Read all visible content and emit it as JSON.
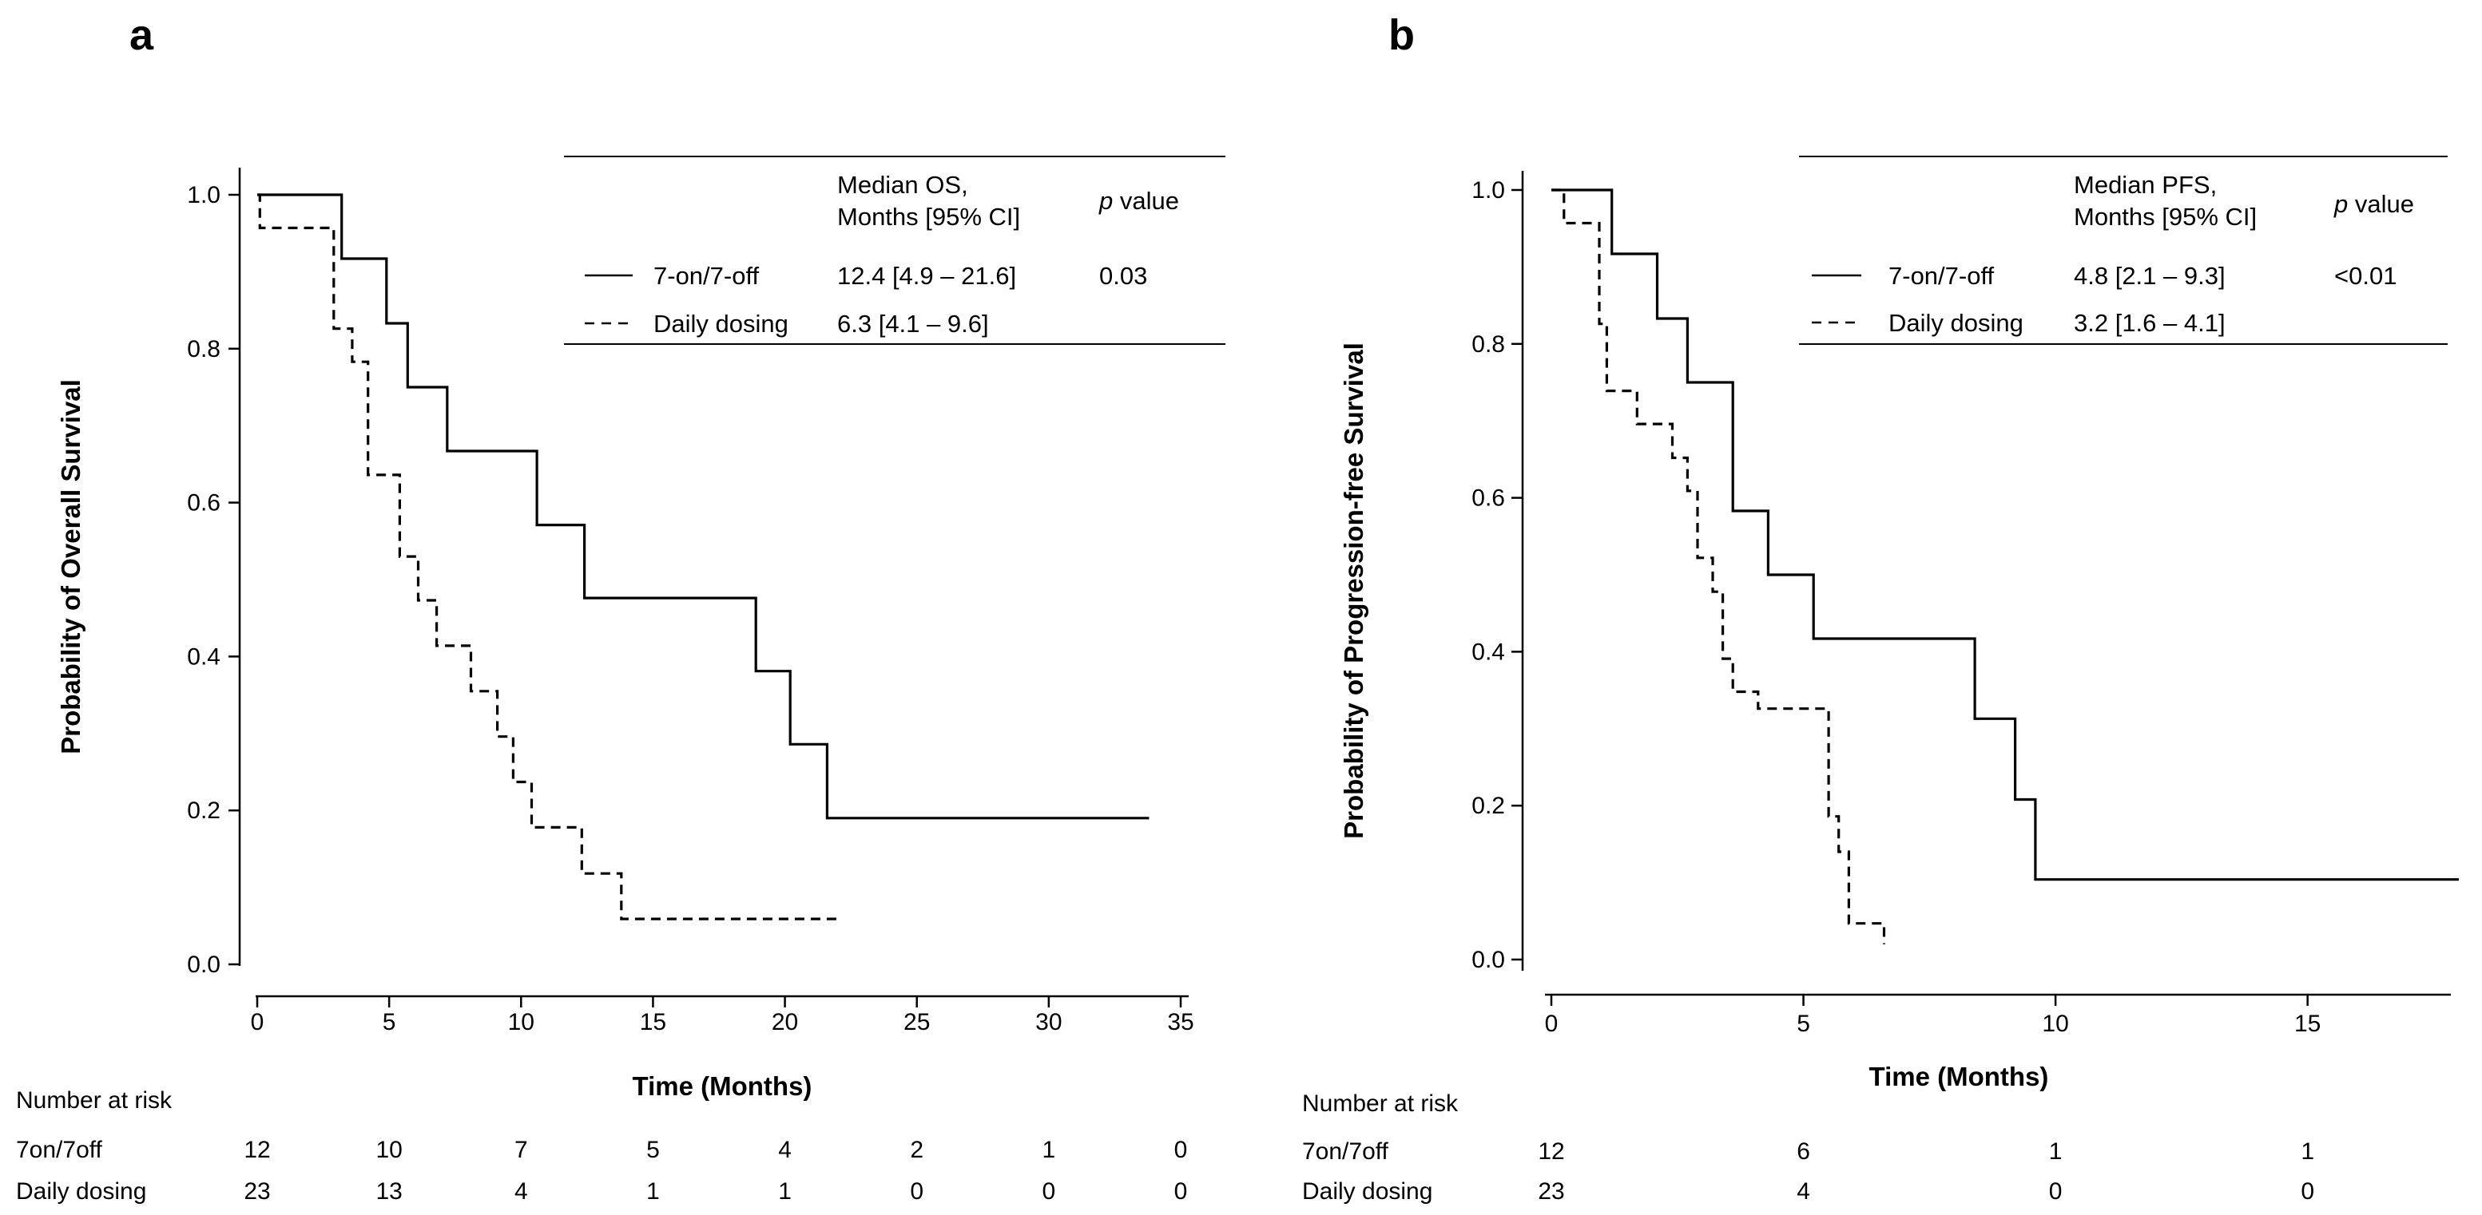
{
  "chart_data": [
    {
      "panel": "a",
      "type": "line",
      "subtype": "kaplan-meier",
      "xlabel": "Time (Months)",
      "ylabel": "Probability of Overall Survival",
      "xlim": [
        0,
        35
      ],
      "ylim": [
        0,
        1
      ],
      "xticks": [
        "0",
        "5",
        "10",
        "15",
        "20",
        "25",
        "30",
        "35"
      ],
      "yticks": [
        "0.0",
        "0.2",
        "0.4",
        "0.6",
        "0.8",
        "1.0"
      ],
      "series": [
        {
          "name": "7-on/7-off",
          "style": "solid",
          "x": [
            0,
            3.2,
            4.9,
            5.7,
            7.2,
            10.6,
            12.4,
            18.9,
            20.2,
            21.6,
            33.8
          ],
          "y": [
            1.0,
            0.917,
            0.833,
            0.75,
            0.667,
            0.571,
            0.476,
            0.381,
            0.286,
            0.19,
            0.19
          ]
        },
        {
          "name": "Daily dosing",
          "style": "dashed",
          "x": [
            0,
            0.1,
            2.9,
            3.6,
            4.2,
            5.4,
            6.1,
            6.8,
            8.1,
            9.1,
            9.7,
            10.4,
            12.3,
            13.8,
            22.0
          ],
          "y": [
            1.0,
            0.957,
            0.826,
            0.783,
            0.636,
            0.53,
            0.473,
            0.414,
            0.355,
            0.296,
            0.237,
            0.178,
            0.118,
            0.059,
            0.059
          ]
        }
      ],
      "legend": {
        "header_col1": [
          "Median OS,",
          "Months [95% CI]"
        ],
        "header_p_italic": "p",
        "header_p_rest": " value",
        "rows": [
          {
            "label": "7-on/7-off",
            "median": "12.4 [4.9 – 21.6]",
            "p": "0.03"
          },
          {
            "label": "Daily dosing",
            "median": "6.3 [4.1 – 9.6]",
            "p": ""
          }
        ]
      },
      "risk_table": {
        "title": "Number at risk",
        "rows": [
          {
            "label": "7on/7off",
            "values": [
              "12",
              "10",
              "7",
              "5",
              "4",
              "2",
              "1",
              "0"
            ]
          },
          {
            "label": "Daily dosing",
            "values": [
              "23",
              "13",
              "4",
              "1",
              "1",
              "0",
              "0",
              "0"
            ]
          }
        ]
      }
    },
    {
      "panel": "b",
      "type": "line",
      "subtype": "kaplan-meier",
      "xlabel": "Time (Months)",
      "ylabel": "Probability of Progression-free Survival",
      "xlim": [
        0,
        18
      ],
      "ylim": [
        0,
        1
      ],
      "xticks": [
        "0",
        "5",
        "10",
        "15"
      ],
      "yticks": [
        "0.0",
        "0.2",
        "0.4",
        "0.6",
        "0.8",
        "1.0"
      ],
      "series": [
        {
          "name": "7-on/7-off",
          "style": "solid",
          "x": [
            0,
            1.2,
            2.1,
            2.7,
            3.6,
            4.3,
            5.2,
            8.4,
            9.2,
            9.6,
            18.0
          ],
          "y": [
            1.0,
            0.917,
            0.833,
            0.75,
            0.583,
            0.5,
            0.417,
            0.313,
            0.208,
            0.104,
            0.104
          ]
        },
        {
          "name": "Daily dosing",
          "style": "dashed",
          "x": [
            0,
            0.25,
            0.95,
            1.1,
            1.3,
            1.7,
            2.4,
            2.7,
            2.9,
            3.2,
            3.4,
            3.6,
            4.1,
            5.5,
            5.7,
            5.9,
            6.6
          ],
          "y": [
            1.0,
            0.957,
            0.826,
            0.739,
            0.739,
            0.696,
            0.652,
            0.609,
            0.522,
            0.478,
            0.391,
            0.348,
            0.326,
            0.186,
            0.14,
            0.047,
            0.02
          ]
        }
      ],
      "legend": {
        "header_col1": [
          "Median PFS,",
          "Months [95% CI]"
        ],
        "header_p_italic": "p",
        "header_p_rest": " value",
        "rows": [
          {
            "label": "7-on/7-off",
            "median": "4.8 [2.1 – 9.3]",
            "p": "<0.01"
          },
          {
            "label": "Daily dosing",
            "median": "3.2 [1.6 – 4.1]",
            "p": ""
          }
        ]
      },
      "risk_table": {
        "title": "Number at risk",
        "rows": [
          {
            "label": "7on/7off",
            "values": [
              "12",
              "6",
              "1",
              "1"
            ]
          },
          {
            "label": "Daily dosing",
            "values": [
              "23",
              "4",
              "0",
              "0"
            ]
          }
        ]
      }
    }
  ]
}
